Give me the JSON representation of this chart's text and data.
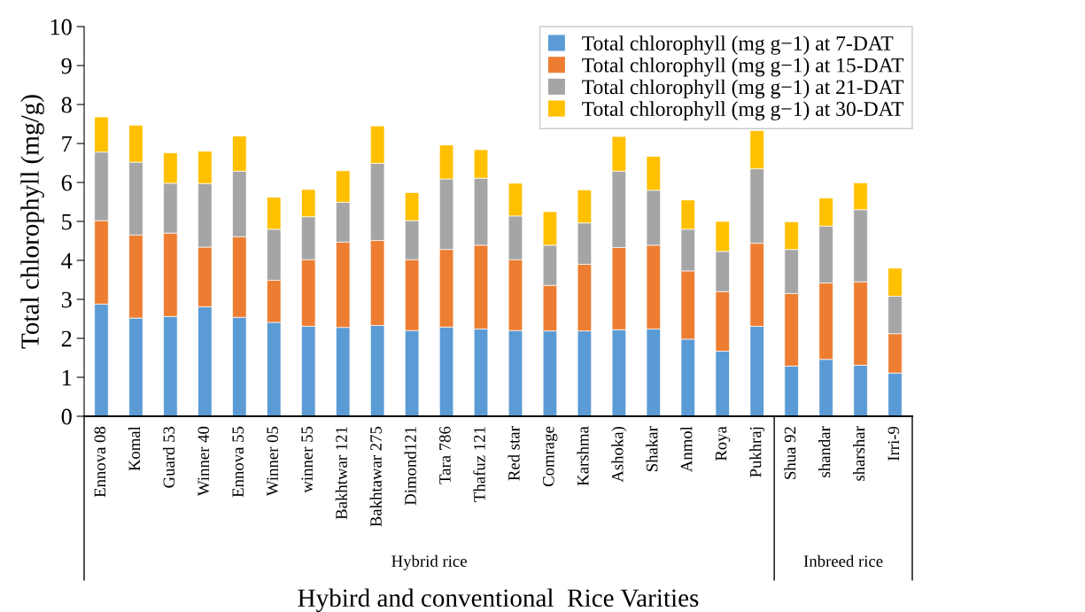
{
  "chart_data": {
    "type": "bar",
    "stacked": true,
    "xlabel": "Hybird and conventional  Rice Varities",
    "ylabel": "Total chlorophyll (mg/g)",
    "categories": [
      "Ennova 08",
      "Komal",
      "Guard 53",
      "Winner 40",
      "Ennova 55",
      "Winner 05",
      "winner 55",
      "Bakhtwar 121",
      "Bakhtawar 275",
      "Dimond121",
      "Tara 786",
      "Thafuz 121",
      "Red star",
      "Comrage",
      "Karshma",
      "Ashoka)",
      "Shakar",
      "Anmol",
      "Roya",
      "Pukhraj",
      "Shua 92",
      "shandar",
      "sharshar",
      "Irri-9"
    ],
    "series": [
      {
        "name": "Total chlorophyll (mg g−1) at 7-DAT",
        "color": "#5b9bd5",
        "values": [
          2.88,
          2.52,
          2.56,
          2.81,
          2.54,
          2.41,
          2.31,
          2.28,
          2.33,
          2.2,
          2.29,
          2.24,
          2.2,
          2.19,
          2.19,
          2.22,
          2.24,
          1.98,
          1.67,
          2.31,
          1.29,
          1.46,
          1.31,
          1.11
        ]
      },
      {
        "name": "Total chlorophyll (mg g−1) at 15-DAT",
        "color": "#ed7d31",
        "values": [
          2.14,
          2.13,
          2.14,
          1.53,
          2.07,
          1.08,
          1.71,
          2.19,
          2.18,
          1.82,
          1.99,
          2.15,
          1.82,
          1.17,
          1.71,
          2.11,
          2.15,
          1.75,
          1.53,
          2.13,
          1.86,
          1.96,
          2.14,
          1.01
        ]
      },
      {
        "name": "Total chlorophyll (mg g−1) at 21-DAT",
        "color": "#a5a5a5",
        "values": [
          1.76,
          1.87,
          1.28,
          1.63,
          1.68,
          1.31,
          1.1,
          1.02,
          1.98,
          1.0,
          1.81,
          1.72,
          1.12,
          1.03,
          1.06,
          1.96,
          1.41,
          1.07,
          1.03,
          1.91,
          1.13,
          1.46,
          1.85,
          0.96
        ]
      },
      {
        "name": "Total chlorophyll (mg g−1) at 30-DAT",
        "color": "#ffc000",
        "values": [
          0.9,
          0.95,
          0.78,
          0.83,
          0.9,
          0.82,
          0.7,
          0.81,
          0.96,
          0.72,
          0.87,
          0.73,
          0.84,
          0.86,
          0.85,
          0.89,
          0.87,
          0.75,
          0.77,
          0.98,
          0.71,
          0.72,
          0.69,
          0.72
        ]
      }
    ],
    "ylim": [
      0,
      10
    ],
    "yticks": [
      0,
      1,
      2,
      3,
      4,
      5,
      6,
      7,
      8,
      9,
      10
    ],
    "legend": "top right",
    "annotations": [
      "Hybrid rice",
      "Inbreed rice"
    ]
  }
}
